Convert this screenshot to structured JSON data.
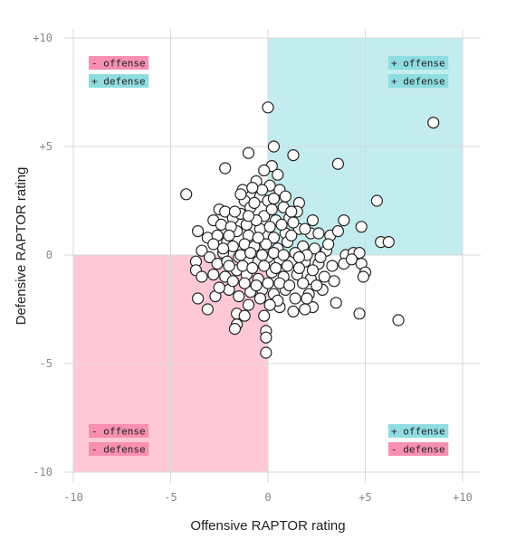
{
  "chart_data": {
    "type": "scatter",
    "title": "",
    "xlabel": "Offensive RAPTOR rating",
    "ylabel": "Defensive RAPTOR rating",
    "xlim": [
      -10,
      10
    ],
    "ylim": [
      -10,
      10
    ],
    "x_ticks": [
      "-10",
      "-5",
      "0",
      "+5",
      "+10"
    ],
    "y_ticks": [
      "+10",
      "+5",
      "0",
      "-5",
      "-10"
    ],
    "grid": true,
    "colors": {
      "positive_quadrant": "#c3ecee",
      "negative_quadrant": "#ffc8d7",
      "offense_badge_pos": "#8fdde0",
      "offense_badge_neg": "#f78fb0",
      "point_fill": "#ffffff",
      "point_stroke": "#222222"
    },
    "quadrant_labels": {
      "top_left": [
        "- offense",
        "+ defense"
      ],
      "top_right": [
        "+ offense",
        "+ defense"
      ],
      "bottom_left": [
        "- offense",
        "- defense"
      ],
      "bottom_right": [
        "+ offense",
        "- defense"
      ]
    },
    "points": [
      [
        8.5,
        6.1
      ],
      [
        0.0,
        6.8
      ],
      [
        0.3,
        5.0
      ],
      [
        1.3,
        4.6
      ],
      [
        -1.0,
        4.7
      ],
      [
        3.6,
        4.2
      ],
      [
        -2.2,
        4.0
      ],
      [
        0.2,
        4.1
      ],
      [
        0.5,
        3.7
      ],
      [
        -0.2,
        3.9
      ],
      [
        -0.6,
        3.4
      ],
      [
        -4.2,
        2.8
      ],
      [
        -1.3,
        3.0
      ],
      [
        0.6,
        3.0
      ],
      [
        5.6,
        2.5
      ],
      [
        -0.4,
        2.7
      ],
      [
        0.1,
        3.2
      ],
      [
        -1.2,
        2.5
      ],
      [
        1.6,
        2.4
      ],
      [
        -2.5,
        2.1
      ],
      [
        -2.2,
        2.0
      ],
      [
        -0.9,
        2.2
      ],
      [
        0.8,
        2.2
      ],
      [
        -1.8,
        1.7
      ],
      [
        -2.8,
        1.6
      ],
      [
        -1.4,
        1.9
      ],
      [
        -0.2,
        1.8
      ],
      [
        0.4,
        1.6
      ],
      [
        1.1,
        1.7
      ],
      [
        2.3,
        1.6
      ],
      [
        3.9,
        1.6
      ],
      [
        4.8,
        1.3
      ],
      [
        -3.6,
        1.1
      ],
      [
        -3.1,
        0.8
      ],
      [
        -2.6,
        0.9
      ],
      [
        -2.1,
        0.6
      ],
      [
        -1.6,
        1.1
      ],
      [
        -1.0,
        0.9
      ],
      [
        -0.4,
        1.2
      ],
      [
        0.3,
        0.8
      ],
      [
        0.9,
        1.0
      ],
      [
        1.6,
        1.2
      ],
      [
        2.2,
        1.0
      ],
      [
        3.2,
        0.9
      ],
      [
        3.6,
        1.1
      ],
      [
        5.8,
        0.6
      ],
      [
        6.2,
        0.6
      ],
      [
        -3.4,
        0.2
      ],
      [
        -2.8,
        0.5
      ],
      [
        -2.3,
        0.1
      ],
      [
        -1.8,
        0.4
      ],
      [
        -1.2,
        0.5
      ],
      [
        -0.7,
        0.4
      ],
      [
        -0.1,
        0.5
      ],
      [
        0.5,
        0.3
      ],
      [
        1.0,
        0.6
      ],
      [
        1.8,
        0.4
      ],
      [
        2.4,
        0.3
      ],
      [
        3.0,
        0.2
      ],
      [
        4.0,
        0.0
      ],
      [
        4.4,
        0.1
      ],
      [
        4.7,
        0.1
      ],
      [
        -3.7,
        -0.3
      ],
      [
        -3.7,
        -0.7
      ],
      [
        -3.0,
        -0.1
      ],
      [
        -2.6,
        -0.4
      ],
      [
        -2.1,
        -0.3
      ],
      [
        -1.5,
        -0.1
      ],
      [
        -1.0,
        -0.2
      ],
      [
        -0.5,
        -0.3
      ],
      [
        0.0,
        -0.1
      ],
      [
        0.6,
        -0.2
      ],
      [
        1.2,
        -0.3
      ],
      [
        1.9,
        -0.3
      ],
      [
        2.6,
        -0.4
      ],
      [
        3.3,
        -0.5
      ],
      [
        3.9,
        -0.4
      ],
      [
        4.3,
        -0.2
      ],
      [
        4.8,
        -0.4
      ],
      [
        5.0,
        -0.8
      ],
      [
        4.9,
        -1.0
      ],
      [
        -3.4,
        -1.0
      ],
      [
        -2.8,
        -0.9
      ],
      [
        -2.2,
        -1.0
      ],
      [
        -1.6,
        -0.7
      ],
      [
        -1.1,
        -0.9
      ],
      [
        -0.5,
        -1.1
      ],
      [
        0.2,
        -0.8
      ],
      [
        0.8,
        -1.0
      ],
      [
        1.5,
        -0.9
      ],
      [
        2.2,
        -1.1
      ],
      [
        2.9,
        -1.0
      ],
      [
        3.4,
        -1.2
      ],
      [
        -3.6,
        -2.0
      ],
      [
        -2.7,
        -1.9
      ],
      [
        -2.0,
        -1.6
      ],
      [
        -1.5,
        -1.9
      ],
      [
        -0.9,
        -1.7
      ],
      [
        -0.3,
        -1.6
      ],
      [
        0.3,
        -1.8
      ],
      [
        0.9,
        -1.6
      ],
      [
        1.4,
        -2.0
      ],
      [
        2.1,
        -1.8
      ],
      [
        2.8,
        -1.6
      ],
      [
        3.5,
        -2.2
      ],
      [
        -3.1,
        -2.5
      ],
      [
        -1.6,
        -2.7
      ],
      [
        -1.2,
        -2.8
      ],
      [
        -0.2,
        -2.8
      ],
      [
        0.6,
        -2.4
      ],
      [
        1.3,
        -2.6
      ],
      [
        2.3,
        -2.4
      ],
      [
        4.7,
        -2.7
      ],
      [
        6.7,
        -3.0
      ],
      [
        -1.6,
        -3.2
      ],
      [
        -1.7,
        -3.4
      ],
      [
        -0.1,
        -3.5
      ],
      [
        -0.1,
        -3.8
      ],
      [
        -0.1,
        -4.5
      ],
      [
        -2.4,
        1.4
      ],
      [
        -1.9,
        1.3
      ],
      [
        -1.1,
        1.4
      ],
      [
        -0.6,
        1.6
      ],
      [
        0.1,
        1.3
      ],
      [
        0.7,
        1.4
      ],
      [
        1.3,
        1.5
      ],
      [
        1.9,
        1.2
      ],
      [
        -1.4,
        0.0
      ],
      [
        -0.9,
        0.1
      ],
      [
        -0.3,
        0.0
      ],
      [
        0.3,
        0.1
      ],
      [
        0.8,
        0.0
      ],
      [
        1.4,
        0.1
      ],
      [
        2.0,
        0.0
      ],
      [
        2.7,
        -0.1
      ],
      [
        -2.0,
        -0.5
      ],
      [
        -1.3,
        -0.5
      ],
      [
        -0.8,
        -0.6
      ],
      [
        -0.2,
        -0.5
      ],
      [
        0.4,
        -0.6
      ],
      [
        1.0,
        -0.5
      ],
      [
        1.6,
        -0.6
      ],
      [
        2.3,
        -0.7
      ],
      [
        -1.8,
        -1.2
      ],
      [
        -1.2,
        -1.3
      ],
      [
        -0.6,
        -1.4
      ],
      [
        0.0,
        -1.3
      ],
      [
        0.6,
        -1.3
      ],
      [
        1.1,
        -1.4
      ],
      [
        1.8,
        -1.3
      ],
      [
        2.5,
        -1.4
      ],
      [
        -0.7,
        2.4
      ],
      [
        0.0,
        2.5
      ],
      [
        -1.7,
        2.0
      ],
      [
        1.5,
        2.0
      ],
      [
        -0.3,
        3.0
      ],
      [
        0.9,
        2.7
      ],
      [
        -1.0,
        1.8
      ],
      [
        0.2,
        2.1
      ],
      [
        2.6,
        1.0
      ],
      [
        -2.0,
        0.9
      ],
      [
        -0.5,
        0.8
      ],
      [
        1.2,
        0.9
      ],
      [
        -2.5,
        -1.5
      ],
      [
        -0.4,
        -2.0
      ],
      [
        0.5,
        -2.1
      ],
      [
        1.9,
        -2.5
      ],
      [
        -1.4,
        2.8
      ],
      [
        -0.8,
        3.1
      ],
      [
        0.3,
        2.6
      ],
      [
        1.2,
        2.0
      ],
      [
        -2.3,
        0.3
      ],
      [
        1.6,
        -0.1
      ],
      [
        3.1,
        0.5
      ],
      [
        -1.0,
        -2.3
      ],
      [
        0.1,
        -2.3
      ],
      [
        2.0,
        -2.0
      ]
    ]
  }
}
